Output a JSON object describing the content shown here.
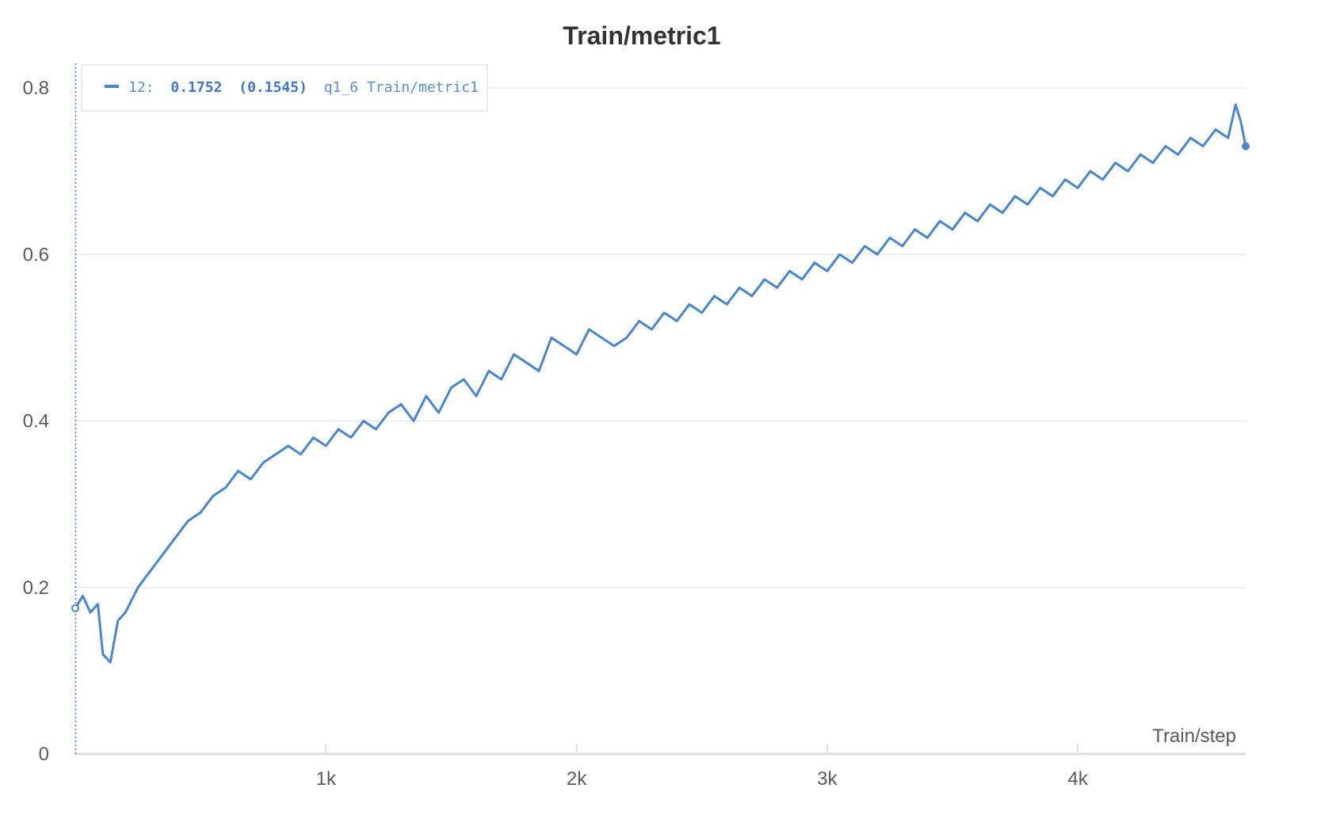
{
  "chart_data": {
    "type": "line",
    "title": "Train/metric1",
    "xlabel": "Train/step",
    "ylabel": "",
    "xlim": [
      0,
      4670
    ],
    "ylim": [
      0,
      0.82
    ],
    "x_ticks": [
      {
        "value": 1000,
        "label": "1k"
      },
      {
        "value": 2000,
        "label": "2k"
      },
      {
        "value": 3000,
        "label": "3k"
      },
      {
        "value": 4000,
        "label": "4k"
      }
    ],
    "y_ticks": [
      {
        "value": 0,
        "label": "0"
      },
      {
        "value": 0.2,
        "label": "0.2"
      },
      {
        "value": 0.4,
        "label": "0.4"
      },
      {
        "value": 0.6,
        "label": "0.6"
      },
      {
        "value": 0.8,
        "label": "0.8"
      }
    ],
    "grid": "horizontal",
    "legend": {
      "placement": "top-left",
      "prefix": "12:",
      "value": "0.1752",
      "smoothed": "(0.1545)",
      "run": "q1_6 Train/metric1"
    },
    "colors": {
      "series": "#4a86cf",
      "grid": "#ececec",
      "axis": "#dddddd",
      "cursor": "#3f78c4"
    },
    "cursor_x": 0,
    "series": [
      {
        "x": [
          0,
          30,
          60,
          90,
          110,
          140,
          170,
          200,
          250,
          300,
          350,
          400,
          450,
          500,
          550,
          600,
          650,
          700,
          750,
          800,
          850,
          900,
          950,
          1000,
          1050,
          1100,
          1150,
          1200,
          1250,
          1300,
          1350,
          1400,
          1450,
          1500,
          1550,
          1600,
          1650,
          1700,
          1750,
          1800,
          1850,
          1900,
          1950,
          2000,
          2050,
          2100,
          2150,
          2200,
          2250,
          2300,
          2350,
          2400,
          2450,
          2500,
          2550,
          2600,
          2650,
          2700,
          2750,
          2800,
          2850,
          2900,
          2950,
          3000,
          3050,
          3100,
          3150,
          3200,
          3250,
          3300,
          3350,
          3400,
          3450,
          3500,
          3550,
          3600,
          3650,
          3700,
          3750,
          3800,
          3850,
          3900,
          3950,
          4000,
          4050,
          4100,
          4150,
          4200,
          4250,
          4300,
          4350,
          4400,
          4450,
          4500,
          4550,
          4600,
          4630,
          4650,
          4670
        ],
        "y": [
          0.175,
          0.19,
          0.17,
          0.18,
          0.12,
          0.11,
          0.16,
          0.17,
          0.2,
          0.22,
          0.24,
          0.26,
          0.28,
          0.29,
          0.31,
          0.32,
          0.34,
          0.33,
          0.35,
          0.36,
          0.37,
          0.36,
          0.38,
          0.37,
          0.39,
          0.38,
          0.4,
          0.39,
          0.41,
          0.42,
          0.4,
          0.43,
          0.41,
          0.44,
          0.45,
          0.43,
          0.46,
          0.45,
          0.48,
          0.47,
          0.46,
          0.5,
          0.49,
          0.48,
          0.51,
          0.5,
          0.49,
          0.5,
          0.52,
          0.51,
          0.53,
          0.52,
          0.54,
          0.53,
          0.55,
          0.54,
          0.56,
          0.55,
          0.57,
          0.56,
          0.58,
          0.57,
          0.59,
          0.58,
          0.6,
          0.59,
          0.61,
          0.6,
          0.62,
          0.61,
          0.63,
          0.62,
          0.64,
          0.63,
          0.65,
          0.64,
          0.66,
          0.65,
          0.67,
          0.66,
          0.68,
          0.67,
          0.69,
          0.68,
          0.7,
          0.69,
          0.71,
          0.7,
          0.72,
          0.71,
          0.73,
          0.72,
          0.74,
          0.73,
          0.75,
          0.74,
          0.78,
          0.76,
          0.73
        ]
      }
    ]
  }
}
